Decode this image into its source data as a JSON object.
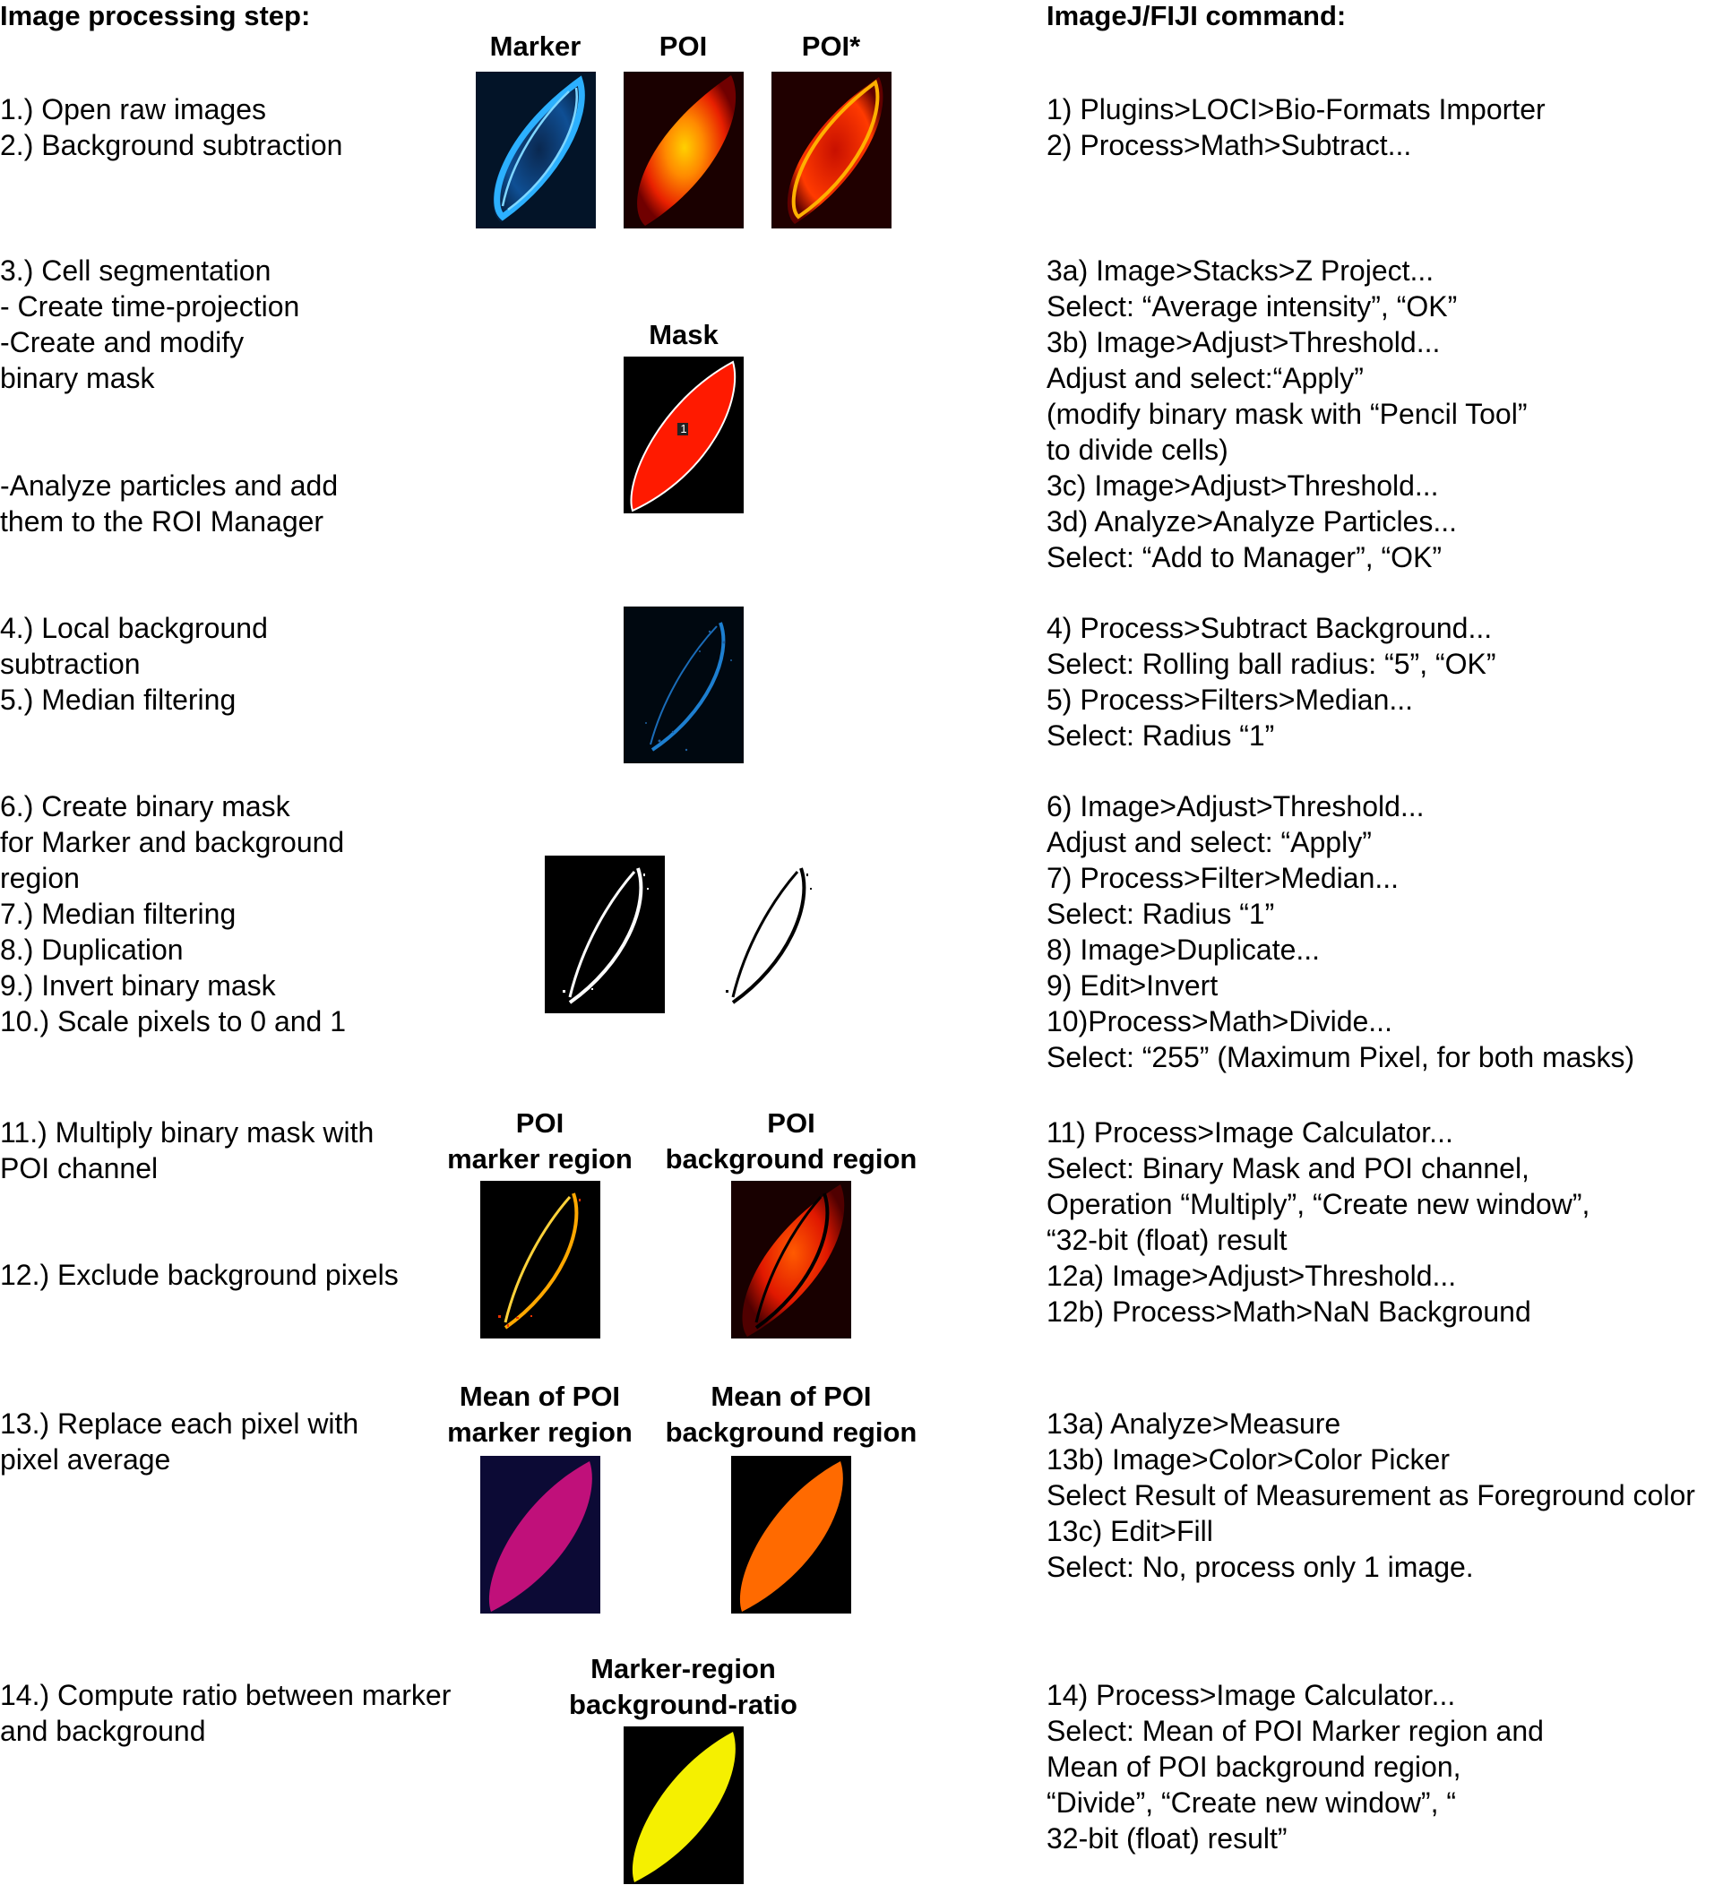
{
  "headers": {
    "left": "Image processing step:",
    "right": "ImageJ/FIJI command:"
  },
  "colors": {
    "marker_cyan": "#1aa0ff",
    "poi_red": "#ff2200",
    "mask_red": "#ff1a00",
    "mean_marker_magenta": "#c0107a",
    "mean_background_orange": "#ff6a00",
    "ratio_yellow": "#f5f000"
  },
  "labels": {
    "marker": "Marker",
    "poi": "POI",
    "poi_star": "POI*",
    "mask": "Mask",
    "cell_number": "1",
    "poi_marker_region": [
      "POI",
      "marker region"
    ],
    "poi_background_region": [
      "POI",
      "background region"
    ],
    "mean_marker_region": [
      "Mean of POI",
      "marker region"
    ],
    "mean_background_region": [
      "Mean of POI",
      "background region"
    ],
    "ratio": [
      "Marker-region",
      "background-ratio"
    ]
  },
  "steps": [
    [
      "1.) Open raw images",
      "2.) Background subtraction"
    ],
    [
      "3.) Cell segmentation",
      "- Create time-projection",
      "-Create and modify",
      "binary mask"
    ],
    [
      "-Analyze particles and add",
      "them to the ROI Manager"
    ],
    [
      "4.) Local background",
      "subtraction",
      "5.) Median filtering"
    ],
    [
      "6.)  Create binary mask",
      "for Marker and background",
      "region",
      "7.) Median filtering",
      "8.) Duplication",
      "9.) Invert binary mask",
      "10.) Scale pixels to 0 and 1"
    ],
    [
      "11.) Multiply binary mask with",
      "POI channel"
    ],
    [
      "12.) Exclude background pixels"
    ],
    [
      "13.) Replace each pixel with",
      "pixel average"
    ],
    [
      "14.) Compute ratio between marker",
      "and background"
    ]
  ],
  "commands": [
    [
      "1) Plugins>LOCI>Bio-Formats Importer",
      "2) Process>Math>Subtract..."
    ],
    [
      "3a) Image>Stacks>Z Project...",
      "Select: “Average intensity”, “OK”",
      "3b) Image>Adjust>Threshold...",
      "Adjust and select:“Apply”",
      "(modify binary mask with “Pencil Tool”",
      "to divide cells)",
      "3c) Image>Adjust>Threshold...",
      "3d) Analyze>Analyze Particles...",
      "Select: “Add to Manager”, “OK”"
    ],
    [
      "4) Process>Subtract Background...",
      "Select: Rolling ball radius: “5”, “OK”",
      "5) Process>Filters>Median...",
      "Select: Radius “1”"
    ],
    [
      "6) Image>Adjust>Threshold...",
      "Adjust and select: “Apply”",
      "7) Process>Filter>Median...",
      "Select: Radius “1”",
      "8) Image>Duplicate...",
      "9) Edit>Invert",
      "10)Process>Math>Divide...",
      "Select: “255” (Maximum Pixel, for both masks)"
    ],
    [
      "11) Process>Image Calculator...",
      "Select: Binary Mask and POI channel,",
      "Operation “Multiply”, “Create new window”,",
      "“32-bit (float) result",
      "12a) Image>Adjust>Threshold...",
      "12b)  Process>Math>NaN Background"
    ],
    [
      "13a) Analyze>Measure",
      "13b) Image>Color>Color Picker",
      "Select Result of Measurement as Foreground color",
      "13c) Edit>Fill",
      "Select: No, process only 1 image."
    ],
    [
      "14) Process>Image Calculator...",
      "Select: Mean of POI Marker  region and",
      "Mean of POI background region,",
      "“Divide”, “Create new window”, “",
      "32-bit (float) result”"
    ]
  ]
}
